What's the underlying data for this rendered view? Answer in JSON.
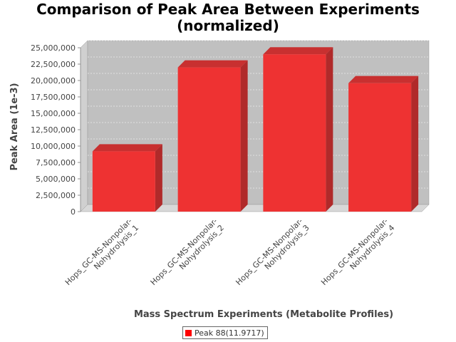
{
  "chart_data": {
    "type": "bar",
    "title": "Comparison of Peak Area Between Experiments\n(normalized)",
    "xlabel": "Mass Spectrum Experiments (Metabolite Profiles)",
    "ylabel": "Peak Area (1e-3)",
    "ylim": [
      0,
      25000000
    ],
    "yticks": [
      0,
      2500000,
      5000000,
      7500000,
      10000000,
      12500000,
      15000000,
      17500000,
      20000000,
      22500000,
      25000000
    ],
    "ytick_labels": [
      "0",
      "2,500,000",
      "5,000,000",
      "7,500,000",
      "10,000,000",
      "12,500,000",
      "15,000,000",
      "17,500,000",
      "20,000,000",
      "22,500,000",
      "25,000,000"
    ],
    "categories": [
      "Hops_GC-MS-Nonpolar-\nNohydrolysis_1",
      "Hops_GC-MS-Nonpolar-\nNohydrolysis_2",
      "Hops_GC-MS-Nonpolar-\nNohydrolysis_3",
      "Hops_GC-MS-Nonpolar-\nNohydrolysis_4"
    ],
    "series": [
      {
        "name": "Peak 88(11.9717)",
        "values": [
          9200000,
          22000000,
          24000000,
          19600000
        ]
      }
    ],
    "grid": true,
    "legend_position": "bottom",
    "colors": {
      "bar_front": "#ee3232",
      "bar_side": "#b02a2a",
      "bar_top": "#c83030",
      "plot_back": "#c0c0c0",
      "plot_floor": "#d8d8d8",
      "legend_swatch": "#ff0000"
    }
  }
}
